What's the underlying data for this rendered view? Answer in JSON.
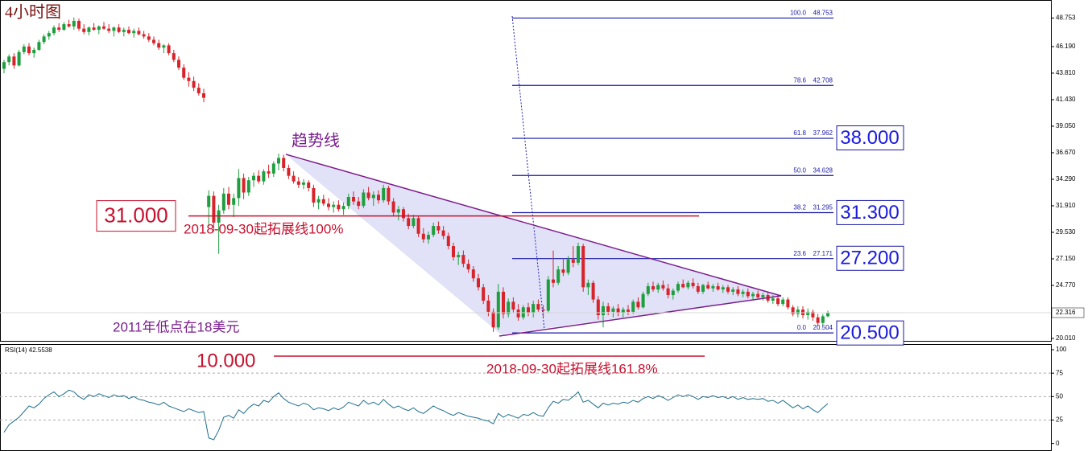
{
  "chart_data": {
    "type": "candlestick",
    "title": "4小时图",
    "ohlc": [
      [
        44.2,
        45.0,
        43.8,
        44.8
      ],
      [
        44.8,
        45.5,
        44.5,
        45.3
      ],
      [
        45.3,
        45.6,
        44.2,
        44.5
      ],
      [
        44.5,
        45.9,
        44.4,
        45.7
      ],
      [
        45.7,
        46.4,
        45.5,
        46.2
      ],
      [
        46.2,
        46.5,
        45.4,
        45.6
      ],
      [
        45.6,
        46.1,
        45.2,
        45.9
      ],
      [
        45.9,
        46.8,
        45.8,
        46.6
      ],
      [
        46.6,
        47.3,
        46.4,
        47.1
      ],
      [
        47.1,
        47.6,
        46.8,
        47.4
      ],
      [
        47.4,
        48.1,
        47.2,
        47.9
      ],
      [
        47.9,
        48.3,
        47.5,
        47.7
      ],
      [
        47.7,
        48.4,
        47.6,
        48.2
      ],
      [
        48.2,
        48.6,
        47.9,
        48.0
      ],
      [
        48.0,
        48.8,
        47.7,
        48.5
      ],
      [
        48.5,
        48.7,
        47.6,
        47.8
      ],
      [
        47.8,
        48.2,
        47.3,
        47.5
      ],
      [
        47.5,
        48.0,
        47.2,
        47.9
      ],
      [
        47.9,
        48.3,
        47.6,
        47.7
      ],
      [
        47.7,
        48.1,
        47.3,
        48.0
      ],
      [
        48.0,
        48.4,
        47.7,
        47.8
      ],
      [
        47.8,
        48.2,
        47.4,
        47.6
      ],
      [
        47.6,
        48.0,
        47.1,
        47.9
      ],
      [
        47.9,
        48.2,
        47.4,
        47.5
      ],
      [
        47.5,
        47.9,
        47.1,
        47.7
      ],
      [
        47.7,
        48.0,
        47.3,
        47.4
      ],
      [
        47.4,
        47.8,
        47.0,
        47.6
      ],
      [
        47.6,
        47.9,
        47.2,
        47.3
      ],
      [
        47.3,
        47.6,
        46.9,
        47.1
      ],
      [
        47.1,
        47.4,
        46.6,
        46.8
      ],
      [
        46.8,
        47.1,
        46.3,
        46.5
      ],
      [
        46.5,
        46.8,
        45.9,
        46.1
      ],
      [
        46.1,
        46.4,
        45.6,
        46.3
      ],
      [
        46.3,
        46.5,
        45.4,
        45.6
      ],
      [
        45.6,
        45.9,
        44.8,
        45.0
      ],
      [
        45.0,
        45.3,
        44.1,
        44.3
      ],
      [
        44.3,
        44.6,
        43.2,
        43.4
      ],
      [
        43.4,
        43.9,
        42.6,
        43.1
      ],
      [
        43.1,
        43.5,
        42.2,
        42.5
      ],
      [
        42.5,
        42.9,
        41.8,
        42.0
      ],
      [
        42.0,
        42.4,
        41.2,
        41.6
      ],
      [
        31.8,
        33.3,
        30.1,
        32.8
      ],
      [
        32.8,
        33.2,
        29.6,
        30.4
      ],
      [
        30.4,
        32.0,
        27.6,
        31.5
      ],
      [
        31.5,
        33.5,
        31.2,
        33.0
      ],
      [
        33.0,
        33.6,
        31.6,
        32.0
      ],
      [
        32.0,
        33.0,
        30.9,
        32.6
      ],
      [
        32.6,
        35.2,
        31.9,
        34.4
      ],
      [
        34.4,
        34.8,
        32.5,
        33.1
      ],
      [
        33.1,
        34.5,
        32.8,
        34.2
      ],
      [
        34.2,
        34.9,
        33.6,
        34.6
      ],
      [
        34.6,
        35.1,
        33.9,
        34.1
      ],
      [
        34.1,
        35.2,
        33.8,
        35.0
      ],
      [
        35.0,
        35.6,
        34.4,
        34.8
      ],
      [
        34.8,
        35.9,
        34.5,
        35.7
      ],
      [
        35.7,
        36.6,
        35.1,
        36.2
      ],
      [
        36.2,
        36.5,
        35.0,
        35.3
      ],
      [
        35.3,
        35.6,
        34.3,
        34.6
      ],
      [
        34.6,
        35.0,
        33.9,
        34.1
      ],
      [
        34.1,
        34.5,
        33.5,
        33.8
      ],
      [
        33.8,
        34.3,
        33.4,
        34.0
      ],
      [
        34.0,
        34.2,
        33.2,
        33.5
      ],
      [
        33.5,
        33.8,
        31.8,
        32.2
      ],
      [
        32.2,
        32.8,
        31.6,
        32.5
      ],
      [
        32.5,
        32.9,
        31.9,
        32.1
      ],
      [
        32.1,
        32.6,
        31.5,
        31.8
      ],
      [
        31.8,
        32.3,
        31.3,
        32.0
      ],
      [
        32.0,
        32.4,
        31.4,
        31.6
      ],
      [
        31.6,
        32.2,
        31.1,
        31.9
      ],
      [
        31.9,
        33.0,
        31.6,
        32.7
      ],
      [
        32.7,
        33.2,
        32.0,
        32.3
      ],
      [
        32.3,
        32.7,
        31.6,
        31.9
      ],
      [
        31.9,
        33.4,
        31.7,
        33.1
      ],
      [
        33.1,
        33.6,
        32.4,
        32.6
      ],
      [
        32.6,
        33.2,
        31.9,
        32.9
      ],
      [
        32.9,
        33.3,
        32.1,
        32.4
      ],
      [
        32.4,
        33.8,
        32.2,
        33.5
      ],
      [
        33.5,
        33.7,
        32.0,
        32.3
      ],
      [
        32.3,
        32.6,
        31.0,
        31.3
      ],
      [
        31.3,
        31.9,
        30.6,
        31.6
      ],
      [
        31.6,
        31.8,
        30.5,
        30.8
      ],
      [
        30.8,
        31.2,
        29.8,
        30.1
      ],
      [
        30.1,
        31.1,
        29.9,
        30.8
      ],
      [
        30.8,
        31.0,
        29.1,
        29.4
      ],
      [
        29.4,
        29.9,
        28.6,
        28.9
      ],
      [
        28.9,
        29.6,
        28.5,
        29.3
      ],
      [
        29.3,
        30.4,
        29.1,
        30.1
      ],
      [
        30.1,
        30.5,
        29.4,
        29.7
      ],
      [
        29.7,
        30.1,
        28.9,
        29.2
      ],
      [
        29.2,
        29.5,
        28.0,
        28.3
      ],
      [
        28.3,
        28.6,
        27.0,
        27.3
      ],
      [
        27.3,
        27.8,
        26.6,
        27.5
      ],
      [
        27.5,
        27.9,
        26.4,
        26.7
      ],
      [
        26.7,
        27.1,
        25.9,
        26.2
      ],
      [
        26.2,
        26.5,
        25.1,
        25.4
      ],
      [
        25.4,
        25.8,
        24.3,
        24.6
      ],
      [
        24.6,
        24.9,
        23.1,
        23.4
      ],
      [
        23.4,
        23.9,
        22.0,
        22.4
      ],
      [
        22.4,
        22.7,
        20.6,
        21.0
      ],
      [
        21.0,
        24.9,
        20.8,
        24.2
      ],
      [
        24.2,
        24.6,
        21.8,
        22.2
      ],
      [
        22.2,
        23.6,
        21.9,
        23.3
      ],
      [
        23.3,
        23.7,
        22.3,
        22.6
      ],
      [
        22.6,
        23.1,
        21.6,
        21.9
      ],
      [
        21.9,
        23.0,
        21.7,
        22.8
      ],
      [
        22.8,
        23.2,
        22.0,
        22.3
      ],
      [
        22.3,
        23.4,
        21.9,
        23.1
      ],
      [
        23.1,
        23.5,
        22.4,
        22.6
      ],
      [
        22.6,
        23.0,
        21.9,
        22.5
      ],
      [
        22.5,
        25.6,
        22.3,
        25.3
      ],
      [
        25.3,
        27.9,
        24.6,
        25.0
      ],
      [
        25.0,
        26.5,
        24.8,
        26.2
      ],
      [
        26.2,
        27.2,
        25.6,
        25.9
      ],
      [
        25.9,
        27.4,
        25.7,
        27.1
      ],
      [
        27.1,
        28.3,
        26.4,
        26.8
      ],
      [
        26.8,
        28.6,
        26.6,
        28.3
      ],
      [
        28.3,
        28.5,
        24.2,
        24.6
      ],
      [
        24.6,
        25.3,
        23.9,
        25.0
      ],
      [
        25.0,
        25.2,
        23.2,
        23.5
      ],
      [
        23.5,
        23.8,
        21.7,
        22.1
      ],
      [
        22.1,
        23.3,
        21.0,
        22.9
      ],
      [
        22.9,
        23.2,
        22.1,
        22.4
      ],
      [
        22.4,
        22.9,
        21.9,
        22.7
      ],
      [
        22.7,
        23.1,
        22.0,
        22.3
      ],
      [
        22.3,
        22.8,
        21.9,
        22.6
      ],
      [
        22.6,
        23.0,
        22.1,
        22.4
      ],
      [
        22.4,
        23.5,
        22.2,
        23.3
      ],
      [
        23.3,
        23.7,
        22.6,
        22.8
      ],
      [
        22.8,
        24.2,
        22.7,
        24.0
      ],
      [
        24.0,
        25.0,
        23.8,
        24.7
      ],
      [
        24.7,
        25.1,
        24.2,
        24.4
      ],
      [
        24.4,
        25.0,
        24.1,
        24.8
      ],
      [
        24.8,
        25.2,
        24.3,
        24.5
      ],
      [
        24.5,
        24.9,
        23.6,
        23.9
      ],
      [
        23.9,
        24.5,
        23.5,
        24.3
      ],
      [
        24.3,
        25.1,
        24.1,
        24.9
      ],
      [
        24.9,
        25.3,
        24.5,
        24.6
      ],
      [
        24.6,
        25.2,
        24.4,
        25.0
      ],
      [
        25.0,
        25.4,
        24.5,
        24.7
      ],
      [
        24.7,
        25.0,
        24.0,
        24.2
      ],
      [
        24.2,
        24.9,
        24.0,
        24.8
      ],
      [
        24.8,
        25.1,
        24.4,
        24.5
      ],
      [
        24.5,
        24.9,
        24.2,
        24.7
      ],
      [
        24.7,
        25.0,
        24.3,
        24.4
      ],
      [
        24.4,
        24.8,
        24.1,
        24.6
      ],
      [
        24.6,
        24.8,
        24.0,
        24.2
      ],
      [
        24.2,
        24.6,
        23.9,
        24.4
      ],
      [
        24.4,
        24.7,
        23.8,
        24.0
      ],
      [
        24.0,
        24.4,
        23.7,
        24.2
      ],
      [
        24.2,
        24.5,
        23.6,
        23.8
      ],
      [
        23.8,
        24.2,
        23.5,
        24.0
      ],
      [
        24.0,
        24.3,
        23.6,
        23.7
      ],
      [
        23.7,
        24.1,
        23.4,
        23.9
      ],
      [
        23.9,
        24.1,
        23.2,
        23.4
      ],
      [
        23.4,
        23.9,
        23.1,
        23.6
      ],
      [
        23.6,
        23.9,
        22.9,
        23.1
      ],
      [
        23.1,
        23.7,
        22.9,
        23.5
      ],
      [
        23.5,
        23.7,
        22.6,
        22.8
      ],
      [
        22.8,
        23.0,
        22.0,
        22.2
      ],
      [
        22.2,
        22.9,
        21.9,
        22.6
      ],
      [
        22.6,
        22.9,
        21.8,
        22.1
      ],
      [
        22.1,
        22.7,
        21.7,
        22.4
      ],
      [
        22.4,
        22.6,
        21.6,
        21.9
      ],
      [
        21.9,
        22.2,
        21.1,
        21.4
      ],
      [
        21.4,
        22.2,
        21.2,
        22.0
      ],
      [
        22.0,
        22.5,
        21.9,
        22.3
      ]
    ],
    "up_color": "#1e9e3e",
    "down_color": "#d8232a",
    "ylim": [
      19.72,
      50.37
    ],
    "yticks": [
      48.753,
      {
        "value": 46.19,
        "label": "46.190"
      },
      {
        "value": 43.81,
        "label": "43.810"
      },
      {
        "value": 41.43,
        "label": "41.430"
      },
      {
        "value": 39.05,
        "label": "39.050"
      },
      {
        "value": 36.67,
        "label": "36.670"
      },
      {
        "value": 34.29,
        "label": "34.290"
      },
      {
        "value": 31.91,
        "label": "31.910"
      },
      {
        "value": 29.53,
        "label": "29.530"
      },
      {
        "value": 27.15,
        "label": "27.150"
      },
      {
        "value": 24.77,
        "label": "24.770"
      },
      {
        "value": 20.01,
        "label": "20.010"
      }
    ],
    "current_price": 22.316,
    "fib_levels": [
      {
        "ratio": "100.0",
        "price": 48.753
      },
      {
        "ratio": "78.6",
        "price": 42.708
      },
      {
        "ratio": "61.8",
        "price": 37.962
      },
      {
        "ratio": "50.0",
        "price": 34.628
      },
      {
        "ratio": "38.2",
        "price": 31.295
      },
      {
        "ratio": "23.6",
        "price": 27.171
      },
      {
        "ratio": "0.0",
        "price": 20.504
      }
    ],
    "targets": [
      {
        "value": 38,
        "label": "38.000"
      },
      {
        "value": 31.3,
        "label": "31.300"
      },
      {
        "value": 27.2,
        "label": "27.200"
      },
      {
        "value": 20.5,
        "label": "20.500"
      }
    ],
    "extension_100": {
      "value": 31,
      "label": "31.000",
      "note": "2018-09-30起拓展线100%"
    },
    "extension_1618": {
      "label": "10.000",
      "note": "2018-09-30起拓展线161.8%"
    },
    "trendline_label": "趋势线",
    "low_note": "2011年低点在18美元",
    "rsi": {
      "label": "RSI(14) 42.5538",
      "color": "#1f6f8b",
      "ylim": [
        -8,
        106
      ],
      "yticks": [
        0,
        25,
        50,
        75,
        100
      ],
      "values": [
        12,
        20,
        24,
        28,
        34,
        40,
        38,
        42,
        48,
        52,
        55,
        50,
        53,
        57,
        55,
        50,
        47,
        52,
        50,
        53,
        51,
        49,
        52,
        50,
        51,
        48,
        50,
        47,
        46,
        44,
        43,
        41,
        44,
        40,
        38,
        36,
        34,
        37,
        35,
        33,
        34,
        6,
        4,
        14,
        28,
        30,
        27,
        36,
        32,
        38,
        42,
        40,
        46,
        44,
        50,
        54,
        48,
        44,
        42,
        40,
        43,
        41,
        36,
        38,
        37,
        35,
        38,
        36,
        39,
        44,
        42,
        40,
        46,
        42,
        44,
        41,
        47,
        42,
        38,
        40,
        37,
        35,
        38,
        34,
        32,
        36,
        40,
        37,
        35,
        32,
        30,
        33,
        31,
        29,
        28,
        27,
        25,
        24,
        21,
        32,
        28,
        31,
        29,
        27,
        31,
        30,
        33,
        30,
        29,
        38,
        45,
        43,
        47,
        46,
        50,
        55,
        44,
        46,
        42,
        38,
        43,
        41,
        43,
        42,
        44,
        43,
        46,
        44,
        48,
        50,
        48,
        51,
        49,
        46,
        49,
        52,
        50,
        52,
        50,
        47,
        50,
        49,
        51,
        49,
        50,
        48,
        50,
        47,
        49,
        47,
        48,
        47,
        48,
        45,
        46,
        43,
        46,
        42,
        38,
        41,
        37,
        40,
        36,
        33,
        38,
        42.5538
      ]
    }
  }
}
